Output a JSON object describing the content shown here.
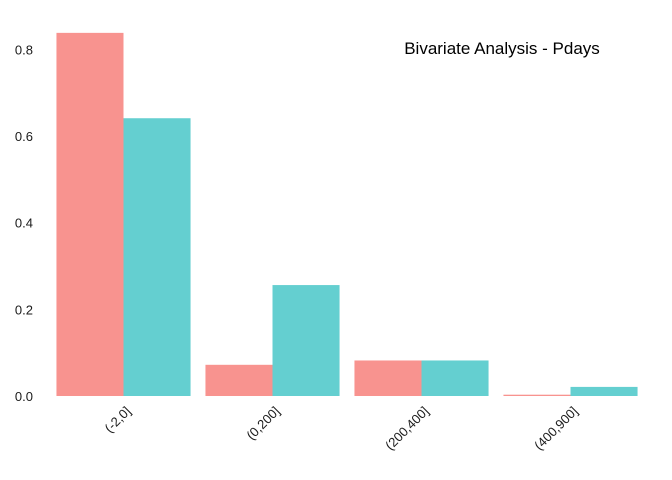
{
  "chart_data": {
    "type": "bar",
    "title": "Bivariate Analysis - Pdays",
    "xlabel": "",
    "ylabel": "",
    "categories": [
      "(-2,0]",
      "(0,200]",
      "(200,400]",
      "(400,900]"
    ],
    "series": [
      {
        "color": "#F8938F",
        "values": [
          0.838,
          0.072,
          0.082,
          0.003
        ]
      },
      {
        "color": "#64CFD0",
        "values": [
          0.641,
          0.256,
          0.082,
          0.021
        ]
      }
    ],
    "ylim": [
      0,
      0.84
    ],
    "yticks": [
      0.0,
      0.2,
      0.4,
      0.6,
      0.8
    ],
    "ytick_labels": [
      "0.0",
      "0.2",
      "0.4",
      "0.6",
      "0.8"
    ],
    "grid": false,
    "legend": "none"
  }
}
